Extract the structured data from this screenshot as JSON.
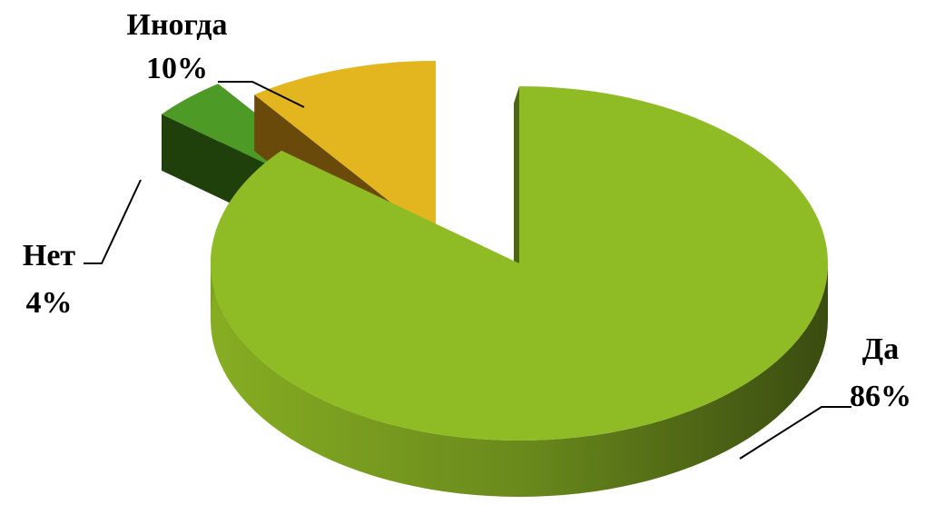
{
  "chart_data": {
    "type": "pie",
    "style": "3d-exploded",
    "categories": [
      "Да",
      "Нет",
      "Иногда"
    ],
    "values": [
      86,
      4,
      10
    ],
    "labels": [
      {
        "name": "Да",
        "value": "86%"
      },
      {
        "name": "Нет",
        "value": "4%"
      },
      {
        "name": "Иногда",
        "value": "10%"
      }
    ],
    "colors": [
      "#8fbc24",
      "#4e9a26",
      "#e3b51e"
    ],
    "title": "",
    "legend": "none"
  }
}
